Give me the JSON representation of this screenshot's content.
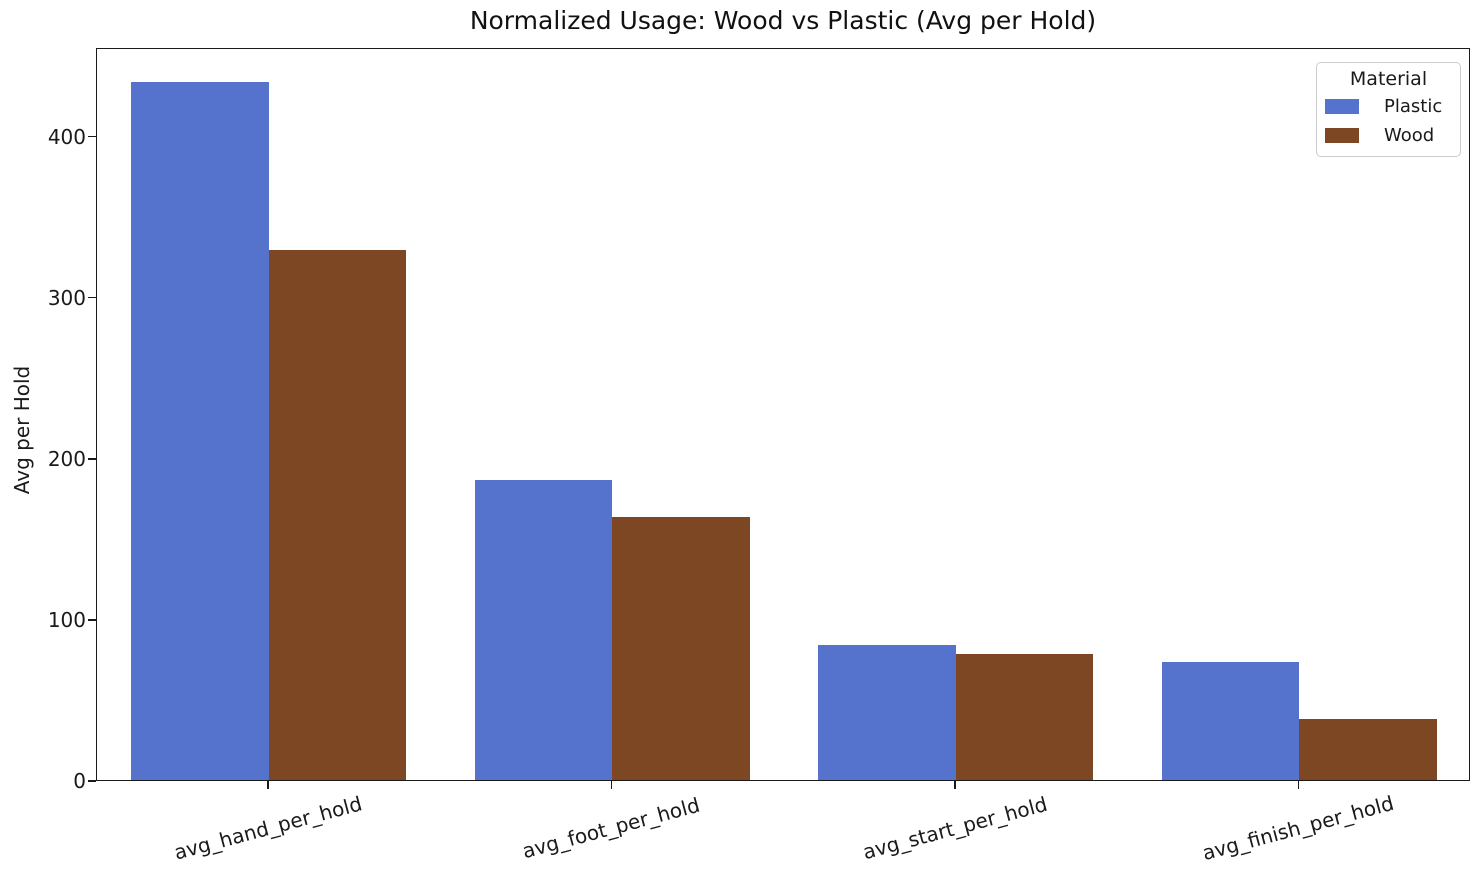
{
  "chart_data": {
    "type": "bar",
    "title": "Normalized Usage: Wood vs Plastic (Avg per Hold)",
    "xlabel": "",
    "ylabel": "Avg per Hold",
    "categories": [
      "avg_hand_per_hold",
      "avg_foot_per_hold",
      "avg_start_per_hold",
      "avg_finish_per_hold"
    ],
    "series": [
      {
        "name": "Plastic",
        "color": "#5573CD",
        "values": [
          433,
          186,
          84,
          73
        ]
      },
      {
        "name": "Wood",
        "color": "#7C4722",
        "values": [
          329,
          163,
          78,
          38
        ]
      }
    ],
    "ylim": [
      0,
      455
    ],
    "yticks": [
      0,
      100,
      200,
      300,
      400
    ],
    "legend": {
      "title": "Material",
      "position": "upper right"
    },
    "grid": false,
    "xtick_rotation_deg": 15,
    "background": "#ffffff",
    "spine_color": "#1a1a1a"
  }
}
